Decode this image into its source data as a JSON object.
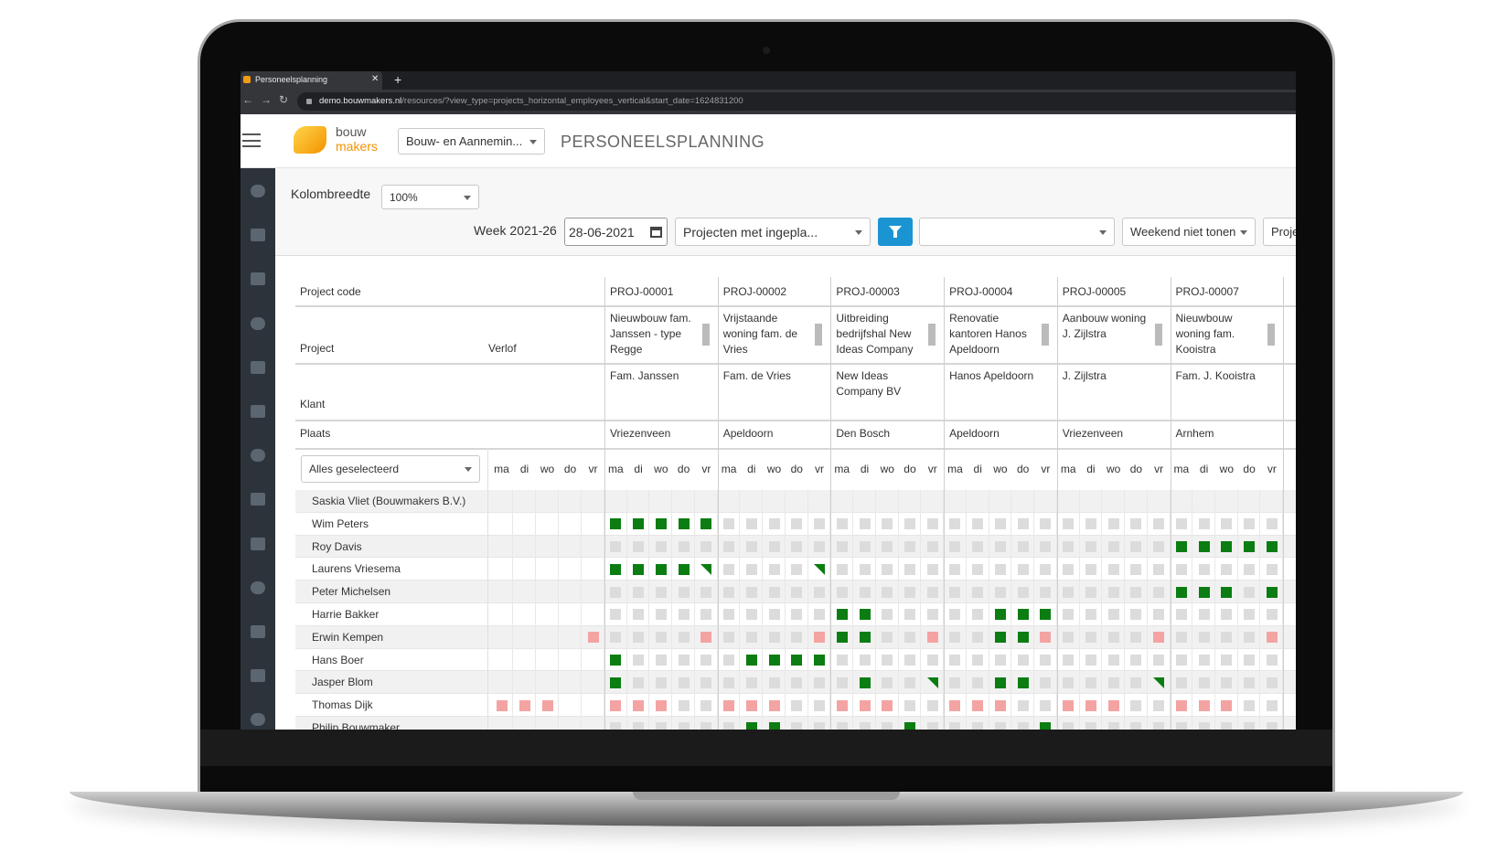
{
  "browser": {
    "tab_title": "Personeelsplanning",
    "url_domain": "demo.bouwmakers.nl",
    "url_path": "/resources/?view_type=projects_horizontal_employees_vertical&start_date=1624831200"
  },
  "header": {
    "logo_top": "bouw",
    "logo_bottom": "makers",
    "company_select": "Bouw- en Aannemin...",
    "title": "PERSONEELSPLANNING"
  },
  "toolbar": {
    "column_width_label": "Kolombreedte",
    "column_width_value": "100%",
    "week_label": "Week 2021-26",
    "date": "28-06-2021",
    "projects_filter": "Projecten met ingepla...",
    "extra_filter": "",
    "weekend": "Weekend niet tonen",
    "partial_button": "Proje"
  },
  "table": {
    "row_labels": {
      "project_code": "Project code",
      "project": "Project",
      "leave": "Verlof",
      "client": "Klant",
      "city": "Plaats"
    },
    "employee_filter": "Alles geselecteerd",
    "days": [
      "ma",
      "di",
      "wo",
      "do",
      "vr"
    ],
    "projects": [
      {
        "code": "PROJ-00001",
        "name": "Nieuwbouw fam. Janssen - type Regge",
        "client": "Fam. Janssen",
        "city": "Vriezenveen"
      },
      {
        "code": "PROJ-00002",
        "name": "Vrijstaande woning fam. de Vries",
        "client": "Fam. de Vries",
        "city": "Apeldoorn"
      },
      {
        "code": "PROJ-00003",
        "name": "Uitbreiding bedrijfshal New Ideas Company",
        "client": "New Ideas Company BV",
        "city": "Den Bosch"
      },
      {
        "code": "PROJ-00004",
        "name": "Renovatie kantoren Hanos Apeldoorn",
        "client": "Hanos Apeldoorn",
        "city": "Apeldoorn"
      },
      {
        "code": "PROJ-00005",
        "name": "Aanbouw woning J. Zijlstra",
        "client": "J. Zijlstra",
        "city": "Vriezenveen"
      },
      {
        "code": "PROJ-00007",
        "name": "Nieuwbouw woning fam. Kooistra",
        "client": "Fam. J. Kooistra",
        "city": "Arnhem"
      }
    ],
    "employees": [
      {
        "name": "Saskia Vliet (Bouwmakers B.V.)",
        "leave": ".....",
        "cells": [
          ".....",
          ".....",
          ".....",
          ".....",
          ".....",
          "....."
        ]
      },
      {
        "name": "Wim Peters",
        "leave": ".....",
        "cells": [
          "GGGGG",
          "EEEEE",
          "EEEEE",
          "EEEEE",
          "EEEEE",
          "EEEEE"
        ]
      },
      {
        "name": "Roy Davis",
        "leave": ".....",
        "cells": [
          "EEEEE",
          "EEEEE",
          "EEEEE",
          "EEEEE",
          "EEEEE",
          "GGGGG"
        ]
      },
      {
        "name": "Laurens Vriesema",
        "leave": ".....",
        "cells": [
          "GGGGT",
          "EEEET",
          "EEEEE",
          "EEEEE",
          "EEEEE",
          "EEEEE"
        ]
      },
      {
        "name": "Peter Michelsen",
        "leave": ".....",
        "cells": [
          "EEEEE",
          "EEEEE",
          "EEEEE",
          "EEEEE",
          "EEEEE",
          "GGGEG"
        ]
      },
      {
        "name": "Harrie Bakker",
        "leave": ".....",
        "cells": [
          "EEEEE",
          "EEEEE",
          "GGEEE",
          "EEGGG",
          "EEEEE",
          "EEEEE"
        ]
      },
      {
        "name": "Erwin Kempen",
        "leave": "....P",
        "cells": [
          "EEEEP",
          "EEEEP",
          "GGEEP",
          "EEGGP",
          "EEEEP",
          "EEEEP"
        ]
      },
      {
        "name": "Hans Boer",
        "leave": ".....",
        "cells": [
          "GEEEE",
          "EGGGG",
          "EEEEE",
          "EEEEE",
          "EEEEE",
          "EEEEE"
        ]
      },
      {
        "name": "Jasper Blom",
        "leave": ".....",
        "cells": [
          "GEEEE",
          "EEEEE",
          "EGEET",
          "EEGGE",
          "EEEET",
          "EEEEE"
        ]
      },
      {
        "name": "Thomas Dijk",
        "leave": "PPP..",
        "cells": [
          "PPPEE",
          "PPPEE",
          "PPPEE",
          "PPPEE",
          "PPPEE",
          "PPPEE"
        ]
      },
      {
        "name": "Philip Bouwmaker",
        "leave": ".....",
        "cells": [
          "EEEEE",
          "EGGEE",
          "EEEGE",
          "EEEEG",
          "EEEEE",
          "EEEEE"
        ]
      }
    ]
  }
}
